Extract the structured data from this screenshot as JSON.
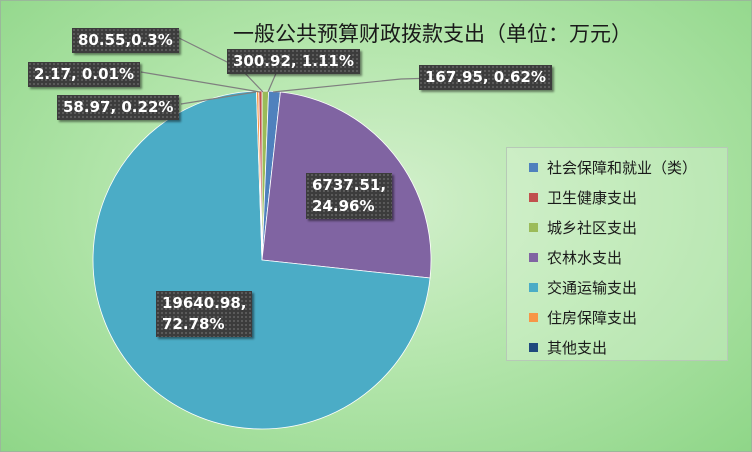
{
  "chart_data": {
    "type": "pie",
    "title": "一般公共预算财政拨款支出（单位：万元）",
    "series": [
      {
        "name": "社会保障和就业（类）",
        "value": 167.95,
        "label": "167.95, 0.62%",
        "color": "#4f81bd"
      },
      {
        "name": "卫生健康支出",
        "value": 300.92,
        "label": "300.92, 1.11%",
        "color": "#c0504d"
      },
      {
        "name": "城乡社区支出",
        "value": 6737.51,
        "label": "6737.51,\n24.96%",
        "color": "#9bbb59"
      },
      {
        "name": "农林水支出",
        "value": 19640.98,
        "label": "19640.98,\n72.78%",
        "color": "#8064a2"
      },
      {
        "name": "交通运输支出",
        "value": 58.97,
        "label": "58.97, 0.22%",
        "color": "#4bacc6"
      },
      {
        "name": "住房保障支出",
        "value": 2.17,
        "label": "2.17, 0.01%",
        "color": "#f79646"
      },
      {
        "name": "其他支出",
        "value": 80.55,
        "label": "80.55,0.3%",
        "color": "#1f497d"
      }
    ],
    "legend_position": "right"
  }
}
